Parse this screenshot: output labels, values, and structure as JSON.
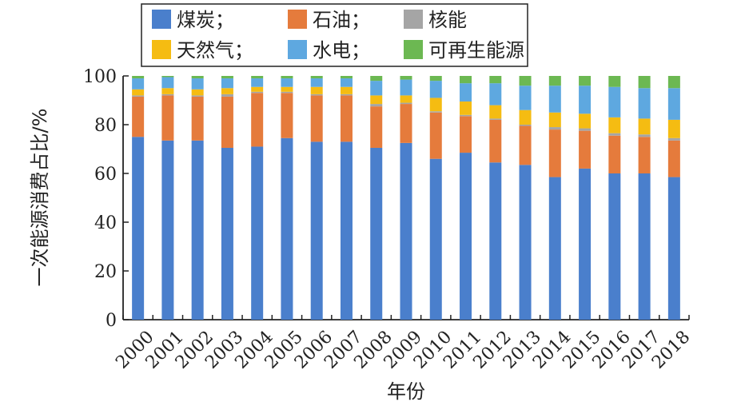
{
  "chart_data": {
    "type": "bar",
    "stacked": true,
    "xlabel": "年份",
    "ylabel": "一次能源消费占比/%",
    "ylim": [
      0,
      100
    ],
    "yticks": [
      "0",
      "20",
      "40",
      "60",
      "80",
      "100"
    ],
    "categories": [
      "2000",
      "2001",
      "2002",
      "2003",
      "2004",
      "2005",
      "2006",
      "2007",
      "2008",
      "2009",
      "2010",
      "2011",
      "2012",
      "2013",
      "2014",
      "2015",
      "2016",
      "2017",
      "2018"
    ],
    "legend_position": "top",
    "series": [
      {
        "name": "煤炭；",
        "color": "#4a7fcc",
        "values": [
          75,
          73.5,
          73.5,
          70.5,
          71,
          74.5,
          73,
          73,
          70.5,
          72.5,
          66,
          68.5,
          64.5,
          63.5,
          58.5,
          62,
          60,
          60,
          58.5
        ]
      },
      {
        "name": "石油；",
        "color": "#e57b3c",
        "values": [
          16.5,
          18.5,
          18,
          21,
          22,
          18.5,
          19,
          19,
          17,
          16,
          19,
          15,
          17.5,
          16,
          19.5,
          15.5,
          15.5,
          15,
          15
        ]
      },
      {
        "name": "核能",
        "color": "#a5a5a5",
        "values": [
          0.5,
          0.5,
          0.5,
          1,
          0.5,
          0.5,
          0.5,
          0.5,
          1,
          0.5,
          0.5,
          0.5,
          0.5,
          0.5,
          1,
          1,
          1,
          1,
          1
        ]
      },
      {
        "name": "天然气；",
        "color": "#f5bc12",
        "values": [
          2.5,
          2.5,
          2.5,
          2.5,
          2,
          2,
          3,
          3,
          3.5,
          3,
          5.5,
          5.5,
          5.5,
          6,
          6,
          6,
          6.5,
          6.5,
          7.5
        ]
      },
      {
        "name": "水电；",
        "color": "#5ea8e0",
        "values": [
          4.5,
          4.5,
          4.5,
          4,
          3.5,
          3.5,
          3.5,
          3.5,
          6,
          6.5,
          7,
          7.5,
          9,
          10,
          11,
          11.5,
          12.5,
          12.5,
          13
        ]
      },
      {
        "name": "可再生能源",
        "color": "#6cb852",
        "values": [
          1,
          0.5,
          1,
          1,
          1,
          1,
          1,
          1,
          2,
          1.5,
          2,
          3,
          3,
          4,
          4,
          4,
          4.5,
          5,
          5
        ]
      }
    ]
  }
}
